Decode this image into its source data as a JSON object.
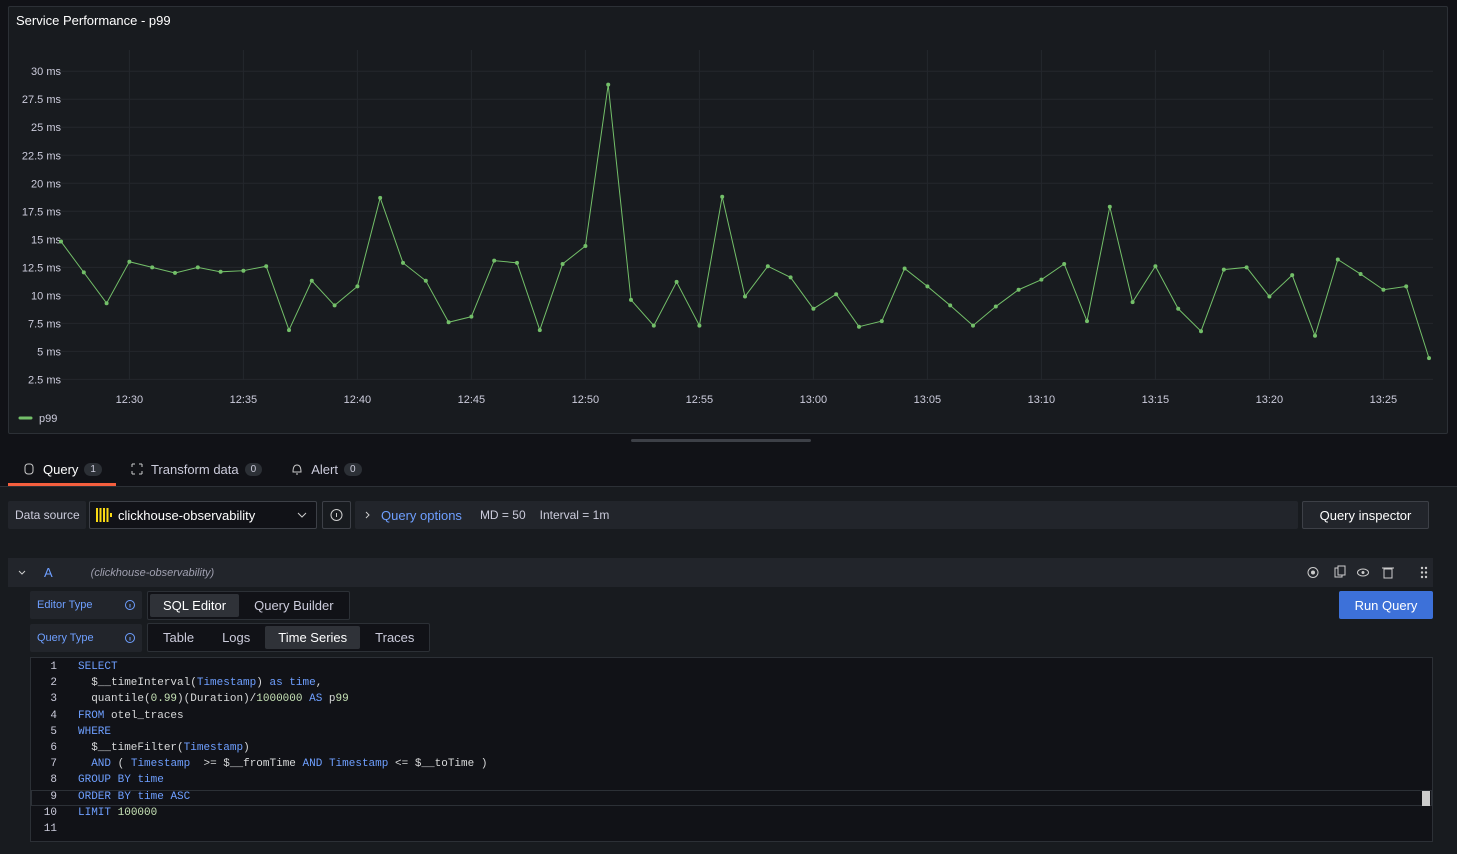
{
  "panel": {
    "title": "Service Performance - p99",
    "chart_data": {
      "type": "line",
      "x": [
        "12:27",
        "12:28",
        "12:29",
        "12:30",
        "12:31",
        "12:32",
        "12:33",
        "12:34",
        "12:35",
        "12:36",
        "12:37",
        "12:38",
        "12:39",
        "12:40",
        "12:41",
        "12:42",
        "12:43",
        "12:44",
        "12:45",
        "12:46",
        "12:47",
        "12:48",
        "12:49",
        "12:50",
        "12:51",
        "12:52",
        "12:53",
        "12:54",
        "12:55",
        "12:56",
        "12:57",
        "12:58",
        "12:59",
        "13:00",
        "13:01",
        "13:02",
        "13:03",
        "13:04",
        "13:05",
        "13:06",
        "13:07",
        "13:08",
        "13:09",
        "13:10",
        "13:11",
        "13:12",
        "13:13",
        "13:14",
        "13:15",
        "13:16",
        "13:17",
        "13:18",
        "13:19",
        "13:20",
        "13:21",
        "13:22",
        "13:23",
        "13:24",
        "13:25",
        "13:26",
        "13:27"
      ],
      "series": [
        {
          "name": "p99",
          "color": "#73bf69",
          "values": [
            14.8,
            12.05,
            9.3,
            13.0,
            12.5,
            12.0,
            12.5,
            12.1,
            12.2,
            12.6,
            6.9,
            11.3,
            9.1,
            10.8,
            18.7,
            12.9,
            11.3,
            7.6,
            8.1,
            13.1,
            12.9,
            6.9,
            12.8,
            14.4,
            28.8,
            9.6,
            7.3,
            11.2,
            7.3,
            18.8,
            9.9,
            12.6,
            11.6,
            8.8,
            10.1,
            7.2,
            7.7,
            12.4,
            10.8,
            9.1,
            7.3,
            9.0,
            10.5,
            11.4,
            12.8,
            7.7,
            17.9,
            9.4,
            12.6,
            8.8,
            6.8,
            12.3,
            12.5,
            9.9,
            11.8,
            6.4,
            13.2,
            11.9,
            10.5,
            10.8,
            4.4
          ]
        }
      ],
      "xlim": [
        "12:27",
        "13:27"
      ],
      "xticks": [
        "12:30",
        "12:35",
        "12:40",
        "12:45",
        "12:50",
        "12:55",
        "13:00",
        "13:05",
        "13:10",
        "13:15",
        "13:20",
        "13:25"
      ],
      "ylim": [
        2,
        31
      ],
      "yticks": [
        {
          "value": 2.5,
          "label": "2.5 ms"
        },
        {
          "value": 5,
          "label": "5 ms"
        },
        {
          "value": 7.5,
          "label": "7.5 ms"
        },
        {
          "value": 10,
          "label": "10 ms"
        },
        {
          "value": 12.5,
          "label": "12.5 ms"
        },
        {
          "value": 15,
          "label": "15 ms"
        },
        {
          "value": 17.5,
          "label": "17.5 ms"
        },
        {
          "value": 20,
          "label": "20 ms"
        },
        {
          "value": 22.5,
          "label": "22.5 ms"
        },
        {
          "value": 25,
          "label": "25 ms"
        },
        {
          "value": 27.5,
          "label": "27.5 ms"
        },
        {
          "value": 30,
          "label": "30 ms"
        }
      ],
      "grid": true,
      "legend": "bottom-left"
    }
  },
  "tabs": [
    {
      "label": "Query",
      "count": 1
    },
    {
      "label": "Transform data",
      "count": 0
    },
    {
      "label": "Alert",
      "count": 0
    }
  ],
  "query_bar": {
    "data_source_label": "Data source",
    "data_source": "clickhouse-observability",
    "options_label": "Query options",
    "max_data_points": "MD = 50",
    "interval": "Interval = 1m",
    "inspector": "Query inspector"
  },
  "query": {
    "ref_id": "A",
    "data_source_note": "(clickhouse-observability)",
    "editor_type_label": "Editor Type",
    "editor_types": [
      "SQL Editor",
      "Query Builder"
    ],
    "editor_type_selected": 0,
    "run": "Run Query",
    "query_type_label": "Query Type",
    "query_types": [
      "Table",
      "Logs",
      "Time Series",
      "Traces"
    ],
    "query_type_selected": 2,
    "code": [
      {
        "number": 1,
        "text": "SELECT"
      },
      {
        "number": 2,
        "text": "  $__timeInterval(Timestamp) as time,"
      },
      {
        "number": 3,
        "text": "  quantile(0.99)(Duration)/1000000 AS p99"
      },
      {
        "number": 4,
        "text": "FROM otel_traces"
      },
      {
        "number": 5,
        "text": "WHERE"
      },
      {
        "number": 6,
        "text": "  $__timeFilter(Timestamp)"
      },
      {
        "number": 7,
        "text": "  AND ( Timestamp  >= $__fromTime AND Timestamp <= $__toTime )"
      },
      {
        "number": 8,
        "text": "GROUP BY time"
      },
      {
        "number": 9,
        "text": "ORDER BY time ASC"
      },
      {
        "number": 10,
        "text": "LIMIT 100000"
      },
      {
        "number": 11
      }
    ],
    "highlighted_line": 8
  }
}
